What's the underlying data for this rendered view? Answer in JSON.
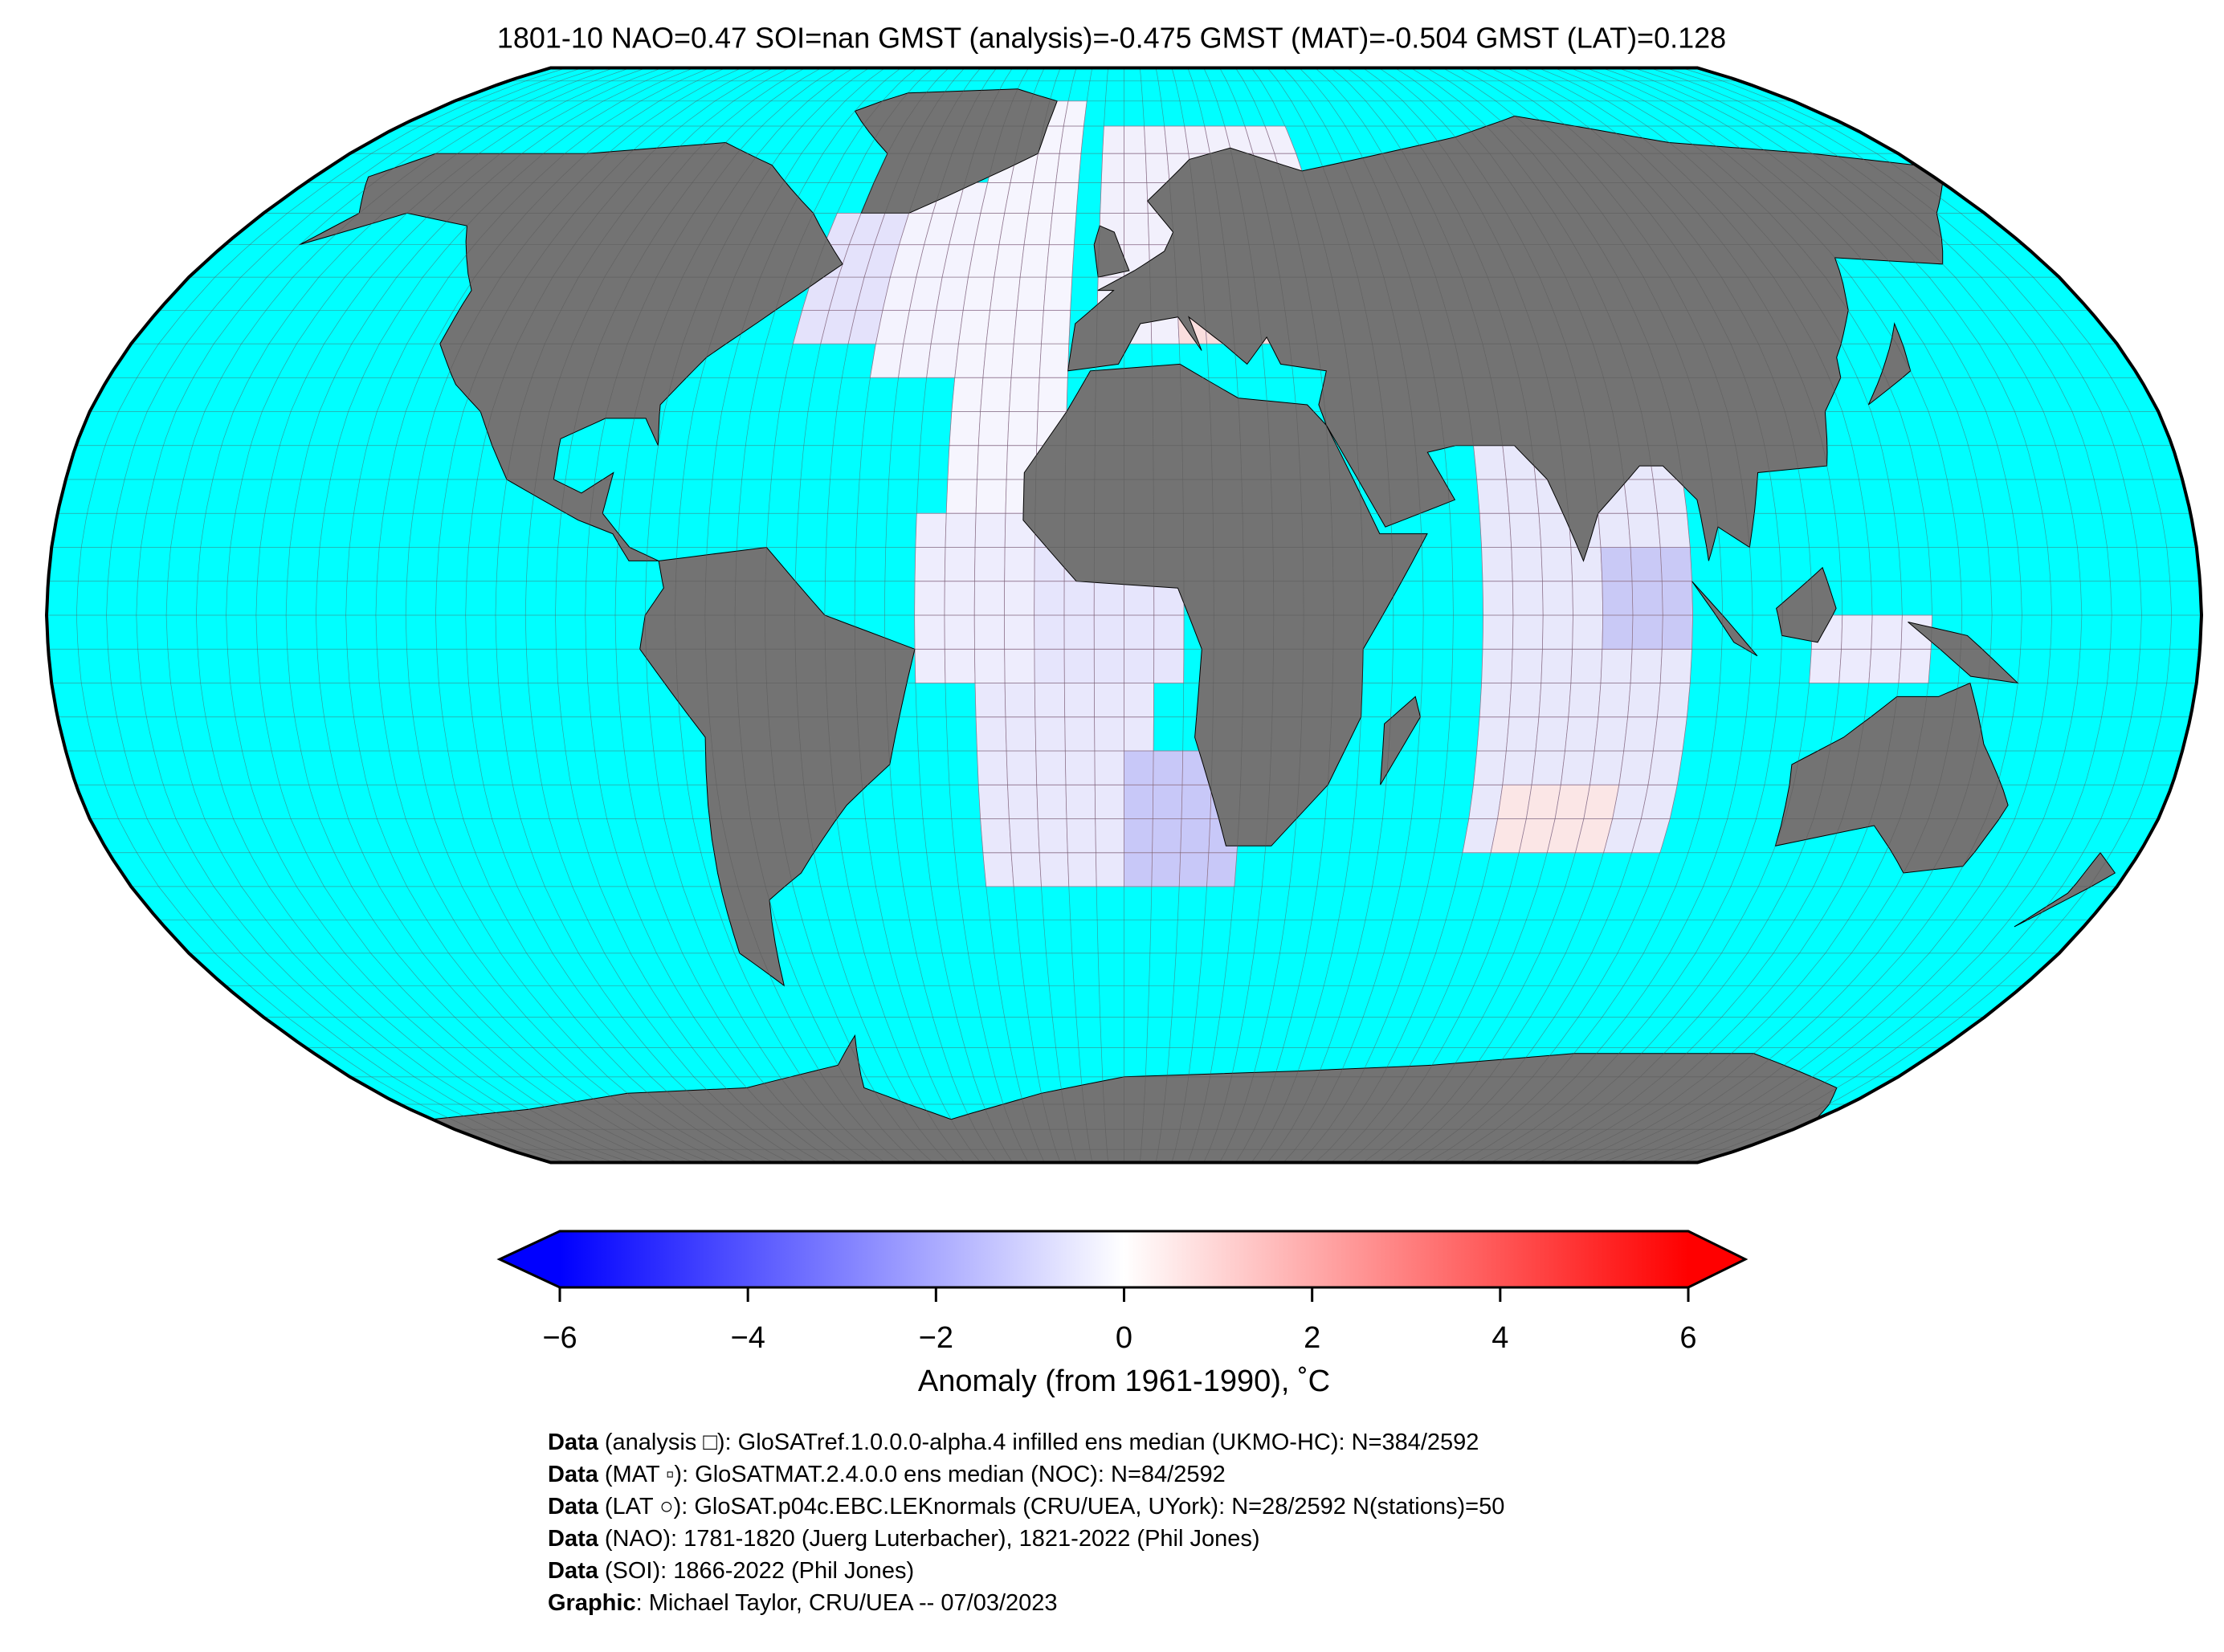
{
  "title": "1801-10 NAO=0.47 SOI=nan GMST (analysis)=-0.475 GMST (MAT)=-0.504 GMST (LAT)=0.128",
  "colorbar": {
    "type": "colorbar",
    "label": "Anomaly (from 1961-1990), ˚C",
    "xlim": [
      -6,
      6
    ],
    "xticks": [
      {
        "value": -6,
        "label": "−6"
      },
      {
        "value": -4,
        "label": "−4"
      },
      {
        "value": -2,
        "label": "−2"
      },
      0,
      2,
      4,
      6
    ],
    "colors": [
      "#0000ff",
      "#ffffff",
      "#ff0000"
    ],
    "extend": "both"
  },
  "credits": [
    {
      "label": "Data",
      "text": "(analysis □): GloSATref.1.0.0.0-alpha.4 infilled ens median (UKMO-HC): N=384/2592"
    },
    {
      "label": "Data",
      "text": "(MAT ▫): GloSATMAT.2.4.0.0 ens median (NOC): N=84/2592"
    },
    {
      "label": "Data",
      "text": "(LAT ○): GloSAT.p04c.EBC.LEKnormals (CRU/UEA, UYork): N=28/2592 N(stations)=50"
    },
    {
      "label": "Data",
      "text": "(NAO): 1781-1820 (Juerg Luterbacher), 1821-2022 (Phil Jones)"
    },
    {
      "label": "Data",
      "text": "(SOI): 1866-2022 (Phil Jones)"
    },
    {
      "label": "Graphic",
      "text": ": Michael Taylor, CRU/UEA -- 07/03/2023"
    }
  ]
}
